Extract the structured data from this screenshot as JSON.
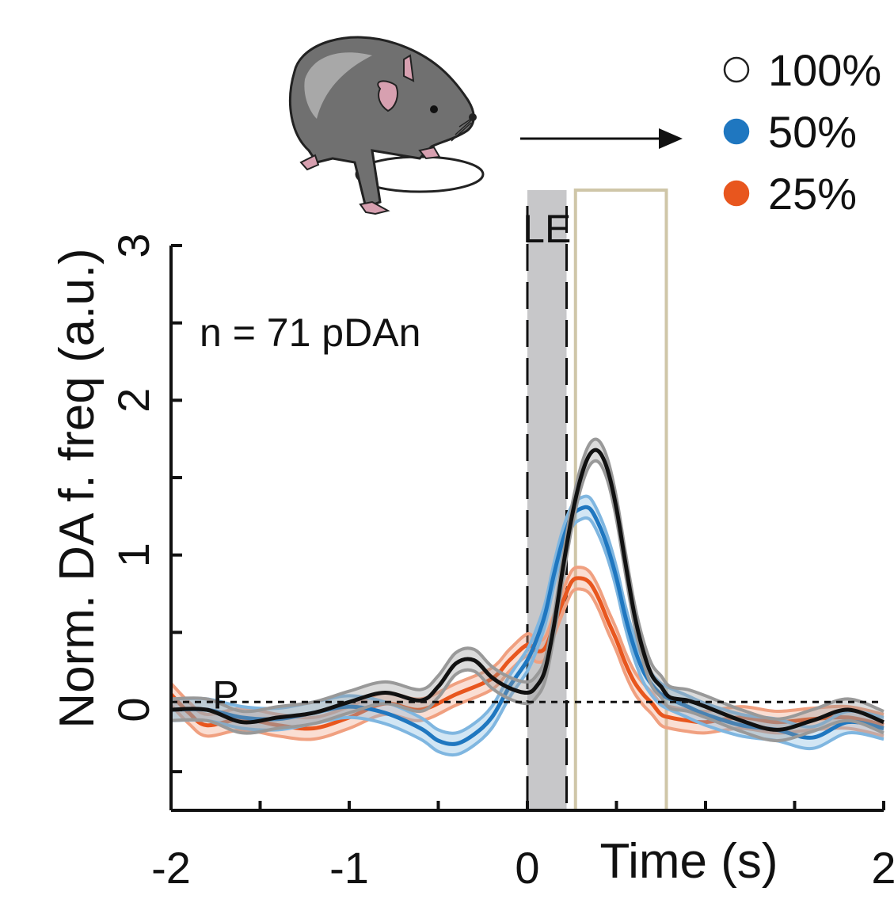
{
  "chart_data": {
    "type": "line",
    "title": "",
    "xlabel": "Time (s)",
    "ylabel": "Norm. DA f. freq (a.u.)",
    "xlim": [
      -2,
      2
    ],
    "ylim": [
      -0.65,
      3
    ],
    "x_ticks": [
      -2,
      -1.5,
      -1,
      -0.5,
      0,
      0.5,
      1,
      1.5,
      2
    ],
    "x_tick_labels": [
      "-2",
      "",
      "-1",
      "",
      "0",
      "",
      "",
      "",
      "2"
    ],
    "y_ticks": [
      -0.4,
      0,
      0.5,
      1,
      1.5,
      2,
      2.5,
      3
    ],
    "y_tick_labels": [
      "",
      "0",
      "",
      "1",
      "",
      "2",
      "",
      "3"
    ],
    "baseline": 0.05,
    "baseline_label": "P",
    "event_window": {
      "label": "LE",
      "start": 0,
      "end": 0.22
    },
    "response_window": {
      "start": 0.27,
      "end": 0.78
    },
    "annotation": "n = 71 pDAn",
    "legend": [
      {
        "label": "100%",
        "color": "#ffffff",
        "stroke": "#222222"
      },
      {
        "label": "50%",
        "color": "#1f77c0",
        "stroke": "#1f77c0"
      },
      {
        "label": "25%",
        "color": "#e8561e",
        "stroke": "#e8561e"
      }
    ],
    "series": [
      {
        "name": "100%",
        "color": "#111111",
        "band_color": "#999999",
        "band_width": 0.07,
        "x": [
          -2,
          -1.8,
          -1.6,
          -1.4,
          -1.2,
          -1.0,
          -0.8,
          -0.6,
          -0.5,
          -0.4,
          -0.3,
          -0.2,
          -0.1,
          0,
          0.05,
          0.1,
          0.15,
          0.2,
          0.25,
          0.3,
          0.35,
          0.4,
          0.45,
          0.5,
          0.55,
          0.6,
          0.65,
          0.7,
          0.75,
          0.8,
          0.9,
          1.0,
          1.2,
          1.4,
          1.6,
          1.8,
          2.0
        ],
        "y": [
          0.0,
          0.0,
          -0.08,
          -0.05,
          -0.02,
          0.05,
          0.11,
          0.06,
          0.15,
          0.3,
          0.32,
          0.21,
          0.14,
          0.11,
          0.15,
          0.26,
          0.55,
          0.92,
          1.25,
          1.5,
          1.65,
          1.67,
          1.55,
          1.3,
          0.95,
          0.62,
          0.38,
          0.22,
          0.15,
          0.08,
          0.06,
          0.02,
          -0.07,
          -0.13,
          -0.07,
          0.0,
          -0.08
        ]
      },
      {
        "name": "50%",
        "color": "#1f77c0",
        "band_color": "#7fb6e0",
        "band_width": 0.07,
        "x": [
          -2,
          -1.8,
          -1.6,
          -1.4,
          -1.2,
          -1.0,
          -0.8,
          -0.6,
          -0.5,
          -0.4,
          -0.3,
          -0.2,
          -0.1,
          0,
          0.05,
          0.1,
          0.15,
          0.2,
          0.25,
          0.3,
          0.35,
          0.4,
          0.45,
          0.5,
          0.55,
          0.6,
          0.65,
          0.7,
          0.75,
          0.8,
          0.9,
          1.0,
          1.2,
          1.4,
          1.6,
          1.8,
          2.0
        ],
        "y": [
          0.0,
          0.0,
          -0.05,
          -0.06,
          -0.02,
          0.02,
          -0.02,
          -0.12,
          -0.2,
          -0.22,
          -0.16,
          -0.05,
          0.15,
          0.32,
          0.45,
          0.62,
          0.88,
          1.1,
          1.25,
          1.3,
          1.3,
          1.2,
          1.05,
          0.85,
          0.6,
          0.4,
          0.25,
          0.16,
          0.1,
          0.07,
          0.02,
          -0.03,
          -0.1,
          -0.13,
          -0.18,
          -0.08,
          -0.12
        ]
      },
      {
        "name": "25%",
        "color": "#e8561e",
        "band_color": "#f0a080",
        "band_width": 0.07,
        "x": [
          -2,
          -1.9,
          -1.8,
          -1.6,
          -1.4,
          -1.2,
          -1.0,
          -0.8,
          -0.6,
          -0.4,
          -0.2,
          -0.1,
          0,
          0.05,
          0.1,
          0.15,
          0.2,
          0.25,
          0.3,
          0.35,
          0.4,
          0.45,
          0.5,
          0.55,
          0.6,
          0.65,
          0.7,
          0.75,
          0.8,
          0.9,
          1.0,
          1.2,
          1.4,
          1.6,
          1.8,
          2.0
        ],
        "y": [
          0.1,
          -0.02,
          -0.1,
          -0.06,
          -0.1,
          -0.12,
          -0.05,
          0.04,
          0.0,
          0.1,
          0.2,
          0.32,
          0.42,
          0.38,
          0.4,
          0.55,
          0.7,
          0.83,
          0.85,
          0.82,
          0.72,
          0.58,
          0.45,
          0.3,
          0.18,
          0.1,
          0.04,
          -0.03,
          -0.05,
          -0.07,
          -0.08,
          -0.05,
          -0.08,
          -0.06,
          -0.05,
          -0.1
        ]
      }
    ]
  }
}
